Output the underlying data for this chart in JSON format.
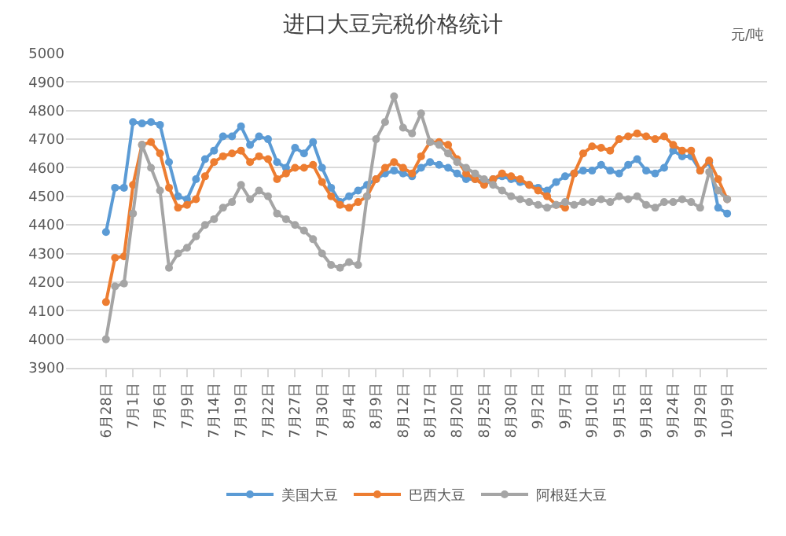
{
  "chart_data": {
    "type": "line",
    "title": "进口大豆完税价格统计",
    "ylabel": "元/吨",
    "categories": [
      "6月28日",
      null,
      null,
      "7月1日",
      null,
      null,
      "7月6日",
      null,
      null,
      "7月9日",
      null,
      null,
      "7月14日",
      null,
      null,
      "7月19日",
      null,
      null,
      "7月22日",
      null,
      null,
      "7月27日",
      null,
      null,
      "7月30日",
      null,
      null,
      "8月4日",
      null,
      null,
      "8月9日",
      null,
      null,
      "8月12日",
      null,
      null,
      "8月17日",
      null,
      null,
      "8月20日",
      null,
      null,
      "8月25日",
      null,
      null,
      "8月30日",
      null,
      null,
      "9月2日",
      null,
      null,
      "9月7日",
      null,
      null,
      "9月10日",
      null,
      null,
      "9月15日",
      null,
      null,
      "9月18日",
      null,
      null,
      "9月24日",
      null,
      null,
      "9月29日",
      null,
      null,
      "10月9日"
    ],
    "series": [
      {
        "name": "美国大豆",
        "color": "#5b9bd5",
        "values": [
          4375,
          4530,
          4530,
          4760,
          4755,
          4760,
          4750,
          4620,
          4500,
          4490,
          4560,
          4630,
          4660,
          4710,
          4710,
          4745,
          4680,
          4710,
          4700,
          4620,
          4600,
          4670,
          4650,
          4690,
          4600,
          4530,
          4480,
          4500,
          4520,
          4540,
          4560,
          4580,
          4590,
          4580,
          4570,
          4600,
          4620,
          4610,
          4600,
          4580,
          4560,
          4560,
          4550,
          4560,
          4570,
          4560,
          4550,
          4540,
          4530,
          4520,
          4550,
          4570,
          4580,
          4590,
          4590,
          4610,
          4590,
          4580,
          4610,
          4630,
          4590,
          4580,
          4600,
          4660,
          4640,
          4640,
          4590,
          4620,
          4460,
          4440
        ]
      },
      {
        "name": "巴西大豆",
        "color": "#ed7d31",
        "values": [
          4130,
          4285,
          4290,
          4540,
          4680,
          4690,
          4650,
          4530,
          4460,
          4470,
          4490,
          4570,
          4620,
          4640,
          4650,
          4660,
          4620,
          4640,
          4630,
          4560,
          4580,
          4600,
          4600,
          4610,
          4550,
          4500,
          4470,
          4460,
          4480,
          4500,
          4560,
          4600,
          4620,
          4600,
          4580,
          4640,
          4690,
          4690,
          4680,
          4630,
          4580,
          4560,
          4540,
          4560,
          4580,
          4570,
          4560,
          4540,
          4520,
          4500,
          4470,
          4460,
          4580,
          4650,
          4675,
          4670,
          4660,
          4700,
          4710,
          4720,
          4710,
          4700,
          4710,
          4680,
          4660,
          4660,
          4590,
          4625,
          4560,
          4490
        ]
      },
      {
        "name": "阿根廷大豆",
        "color": "#a5a5a5",
        "values": [
          4000,
          4185,
          4195,
          4440,
          4680,
          4600,
          4520,
          4250,
          4300,
          4320,
          4360,
          4400,
          4420,
          4460,
          4480,
          4540,
          4490,
          4520,
          4500,
          4440,
          4420,
          4400,
          4380,
          4350,
          4300,
          4260,
          4250,
          4270,
          4260,
          4500,
          4700,
          4760,
          4850,
          4740,
          4720,
          4790,
          4690,
          4680,
          4650,
          4620,
          4600,
          4580,
          4560,
          4540,
          4520,
          4500,
          4490,
          4480,
          4470,
          4460,
          4470,
          4480,
          4470,
          4480,
          4480,
          4490,
          4480,
          4500,
          4490,
          4500,
          4470,
          4460,
          4480,
          4480,
          4490,
          4480,
          4460,
          4585,
          4520,
          4490
        ]
      }
    ],
    "ylim": [
      3900,
      5000
    ],
    "yticks": [
      3900,
      4000,
      4100,
      4200,
      4300,
      4400,
      4500,
      4600,
      4700,
      4800,
      4900,
      5000
    ],
    "grid": "y",
    "legend": "bottom",
    "marker": "circle",
    "line_style": "solid"
  }
}
